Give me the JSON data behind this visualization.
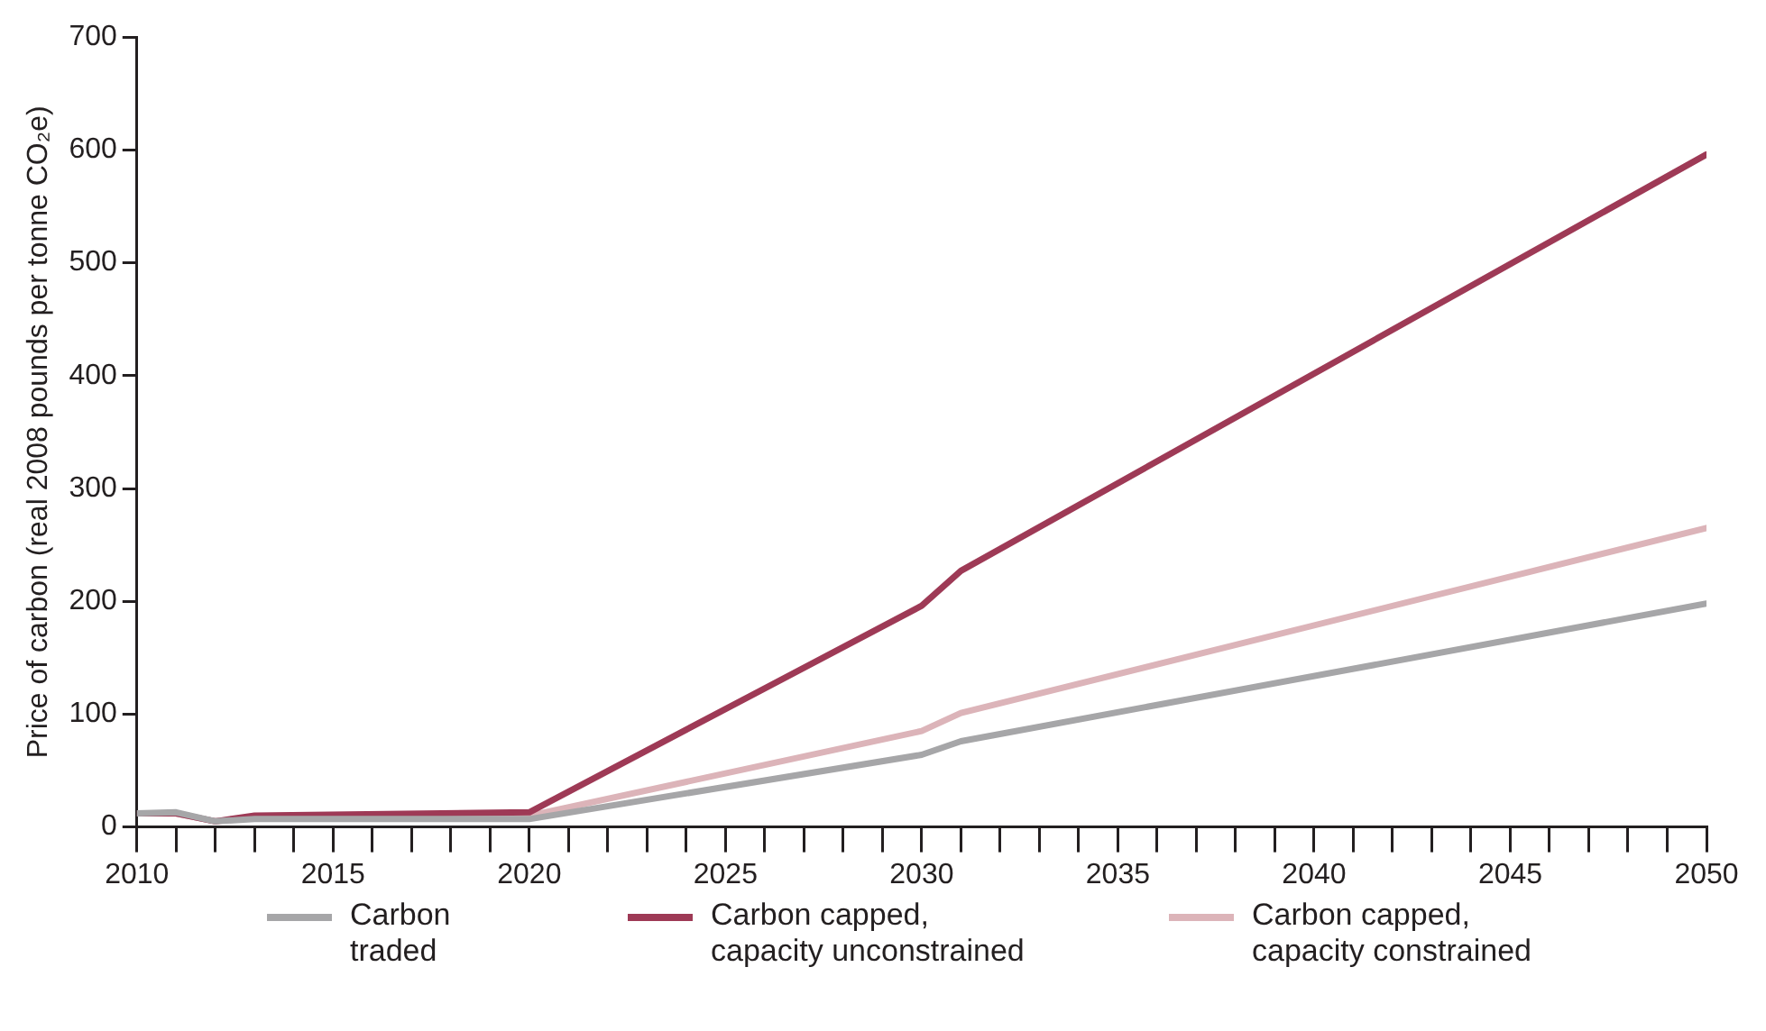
{
  "chart_data": {
    "type": "line",
    "ylabel": "Price of carbon (real 2008 pounds per tonne CO₂e)",
    "xlim": [
      2010,
      2050
    ],
    "ylim": [
      0,
      700
    ],
    "xticks": [
      2010,
      {
        "value": 2011,
        "label": null
      },
      {
        "value": 2012,
        "label": null
      },
      {
        "value": 2013,
        "label": null
      },
      {
        "value": 2014,
        "label": null
      },
      2015,
      {
        "value": 2016,
        "label": null
      },
      {
        "value": 2017,
        "label": null
      },
      {
        "value": 2018,
        "label": null
      },
      {
        "value": 2019,
        "label": null
      },
      2020,
      {
        "value": 2021,
        "label": null
      },
      {
        "value": 2022,
        "label": null
      },
      {
        "value": 2023,
        "label": null
      },
      {
        "value": 2024,
        "label": null
      },
      2025,
      {
        "value": 2026,
        "label": null
      },
      {
        "value": 2027,
        "label": null
      },
      {
        "value": 2028,
        "label": null
      },
      {
        "value": 2029,
        "label": null
      },
      2030,
      {
        "value": 2031,
        "label": null
      },
      {
        "value": 2032,
        "label": null
      },
      {
        "value": 2033,
        "label": null
      },
      {
        "value": 2034,
        "label": null
      },
      2035,
      {
        "value": 2036,
        "label": null
      },
      {
        "value": 2037,
        "label": null
      },
      {
        "value": 2038,
        "label": null
      },
      {
        "value": 2039,
        "label": null
      },
      2040,
      {
        "value": 2041,
        "label": null
      },
      {
        "value": 2042,
        "label": null
      },
      {
        "value": 2043,
        "label": null
      },
      {
        "value": 2044,
        "label": null
      },
      2045,
      {
        "value": 2046,
        "label": null
      },
      {
        "value": 2047,
        "label": null
      },
      {
        "value": 2048,
        "label": null
      },
      {
        "value": 2049,
        "label": null
      },
      2050
    ],
    "yticks": [
      0,
      100,
      200,
      300,
      400,
      500,
      600,
      700
    ],
    "grid": false,
    "legend": "bottom",
    "marker": "none",
    "line_style": "solid",
    "x": [
      2010,
      2011,
      2012,
      2013,
      2020,
      2030,
      2031,
      2050
    ],
    "series": [
      {
        "name": "Carbon traded",
        "color": "#a6a6a8",
        "values": [
          12,
          13,
          5,
          7,
          7,
          64,
          76,
          198
        ]
      },
      {
        "name": "Carbon capped, capacity unconstrained",
        "color": "#9e3a56",
        "values": [
          12,
          12,
          5,
          10,
          13,
          196,
          227,
          596
        ]
      },
      {
        "name": "Carbon capped, capacity constrained",
        "color": "#dcb4b9",
        "values": [
          null,
          12,
          5,
          8,
          10,
          85,
          101,
          265
        ]
      }
    ]
  }
}
